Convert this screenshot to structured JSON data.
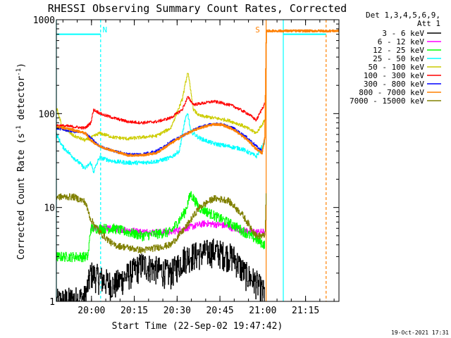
{
  "chart_data": {
    "type": "line",
    "title": "RHESSI Observing Summary Count Rates, Corrected",
    "xlabel": "Start Time (22-Sep-02 19:47:42)",
    "ylabel": "Corrected Count Rate (s⁻¹ detector⁻¹)",
    "ylabel_main": "Corrected Count Rate (s",
    "ylabel_sup1": "-1",
    "ylabel_mid": " detector",
    "ylabel_sup2": "-1",
    "ylabel_end": ")",
    "y_scale": "log",
    "ylim": [
      1,
      1000
    ],
    "xlim_minutes": [
      0,
      99
    ],
    "x_ticks": [
      {
        "label": "20:00",
        "minutes": 12.3
      },
      {
        "label": "20:15",
        "minutes": 27.3
      },
      {
        "label": "20:30",
        "minutes": 42.3
      },
      {
        "label": "20:45",
        "minutes": 57.3
      },
      {
        "label": "21:00",
        "minutes": 72.3
      },
      {
        "label": "21:15",
        "minutes": 87.3
      }
    ],
    "y_ticks": [
      {
        "label": "1",
        "value": 1
      },
      {
        "label": "10",
        "value": 10
      },
      {
        "label": "100",
        "value": 100
      },
      {
        "label": "1000",
        "value": 1000
      }
    ],
    "legend_header": [
      "Det 1,3,4,5,6,9,",
      "Att 1"
    ],
    "legend_position": "right",
    "series": [
      {
        "name": "3 - 6 keV",
        "color": "#000000",
        "noise": 0.35,
        "points": [
          [
            0,
            1.0
          ],
          [
            10,
            1.1
          ],
          [
            12,
            2.0
          ],
          [
            20,
            1.5
          ],
          [
            30,
            2.5
          ],
          [
            40,
            2.0
          ],
          [
            45,
            3.0
          ],
          [
            55,
            3.5
          ],
          [
            62,
            3.0
          ],
          [
            66,
            2.0
          ],
          [
            70,
            1.6
          ],
          [
            73,
            1.2
          ]
        ]
      },
      {
        "name": "6 - 12 keV",
        "color": "#ff00ff",
        "noise": 0.08,
        "points": [
          [
            12,
            6.0
          ],
          [
            20,
            6.0
          ],
          [
            30,
            5.5
          ],
          [
            40,
            5.5
          ],
          [
            45,
            6.0
          ],
          [
            52,
            6.8
          ],
          [
            58,
            6.5
          ],
          [
            64,
            5.8
          ],
          [
            70,
            5.5
          ],
          [
            73,
            5.5
          ]
        ]
      },
      {
        "name": "12 - 25 keV",
        "color": "#00ff00",
        "noise": 0.12,
        "points": [
          [
            0,
            3.0
          ],
          [
            11,
            3.0
          ],
          [
            12,
            6.0
          ],
          [
            20,
            6.0
          ],
          [
            30,
            5.0
          ],
          [
            40,
            5.5
          ],
          [
            45,
            9.0
          ],
          [
            47,
            14.0
          ],
          [
            50,
            10.0
          ],
          [
            56,
            8.0
          ],
          [
            62,
            6.5
          ],
          [
            68,
            5.0
          ],
          [
            73,
            4.0
          ]
        ]
      },
      {
        "name": "25 - 50 keV",
        "color": "#00ffff",
        "noise": 0.05,
        "points": [
          [
            0,
            60
          ],
          [
            2,
            45
          ],
          [
            6,
            34
          ],
          [
            10,
            26
          ],
          [
            12,
            30
          ],
          [
            13,
            24
          ],
          [
            15,
            34
          ],
          [
            20,
            31
          ],
          [
            25,
            30
          ],
          [
            30,
            30
          ],
          [
            35,
            31
          ],
          [
            40,
            34
          ],
          [
            43,
            40
          ],
          [
            45,
            85
          ],
          [
            46,
            100
          ],
          [
            47,
            65
          ],
          [
            50,
            55
          ],
          [
            55,
            48
          ],
          [
            60,
            45
          ],
          [
            65,
            42
          ],
          [
            70,
            35
          ],
          [
            73,
            50
          ]
        ]
      },
      {
        "name": "50 - 100 keV",
        "color": "#cccc00",
        "noise": 0.04,
        "points": [
          [
            0,
            115
          ],
          [
            2,
            72
          ],
          [
            6,
            58
          ],
          [
            10,
            52
          ],
          [
            12,
            55
          ],
          [
            15,
            62
          ],
          [
            20,
            56
          ],
          [
            25,
            54
          ],
          [
            30,
            56
          ],
          [
            35,
            58
          ],
          [
            40,
            70
          ],
          [
            44,
            140
          ],
          [
            46,
            280
          ],
          [
            48,
            110
          ],
          [
            50,
            95
          ],
          [
            55,
            90
          ],
          [
            60,
            85
          ],
          [
            65,
            75
          ],
          [
            70,
            62
          ],
          [
            73,
            85
          ]
        ]
      },
      {
        "name": "100 - 300 keV",
        "color": "#ff0000",
        "noise": 0.035,
        "points": [
          [
            0,
            75
          ],
          [
            5,
            73
          ],
          [
            10,
            70
          ],
          [
            12,
            80
          ],
          [
            13,
            110
          ],
          [
            16,
            98
          ],
          [
            20,
            90
          ],
          [
            25,
            82
          ],
          [
            30,
            80
          ],
          [
            35,
            82
          ],
          [
            40,
            90
          ],
          [
            44,
            110
          ],
          [
            46,
            150
          ],
          [
            48,
            125
          ],
          [
            52,
            130
          ],
          [
            55,
            135
          ],
          [
            58,
            130
          ],
          [
            62,
            120
          ],
          [
            67,
            100
          ],
          [
            70,
            85
          ],
          [
            73,
            130
          ]
        ]
      },
      {
        "name": "300 - 800 keV",
        "color": "#0000ff",
        "noise": 0.03,
        "points": [
          [
            0,
            70
          ],
          [
            5,
            65
          ],
          [
            10,
            62
          ],
          [
            12,
            55
          ],
          [
            15,
            45
          ],
          [
            20,
            40
          ],
          [
            25,
            37
          ],
          [
            30,
            37
          ],
          [
            35,
            40
          ],
          [
            40,
            50
          ],
          [
            45,
            60
          ],
          [
            50,
            72
          ],
          [
            55,
            78
          ],
          [
            58,
            77
          ],
          [
            62,
            70
          ],
          [
            67,
            55
          ],
          [
            70,
            45
          ],
          [
            72,
            40
          ],
          [
            73,
            55
          ]
        ]
      },
      {
        "name": "800 - 7000 keV",
        "color": "#ff8000",
        "noise": 0.025,
        "points": [
          [
            0,
            72
          ],
          [
            5,
            68
          ],
          [
            10,
            62
          ],
          [
            12,
            52
          ],
          [
            15,
            45
          ],
          [
            20,
            40
          ],
          [
            25,
            36
          ],
          [
            30,
            36
          ],
          [
            35,
            38
          ],
          [
            40,
            48
          ],
          [
            45,
            60
          ],
          [
            50,
            70
          ],
          [
            55,
            77
          ],
          [
            58,
            76
          ],
          [
            62,
            68
          ],
          [
            67,
            52
          ],
          [
            70,
            42
          ],
          [
            72,
            38
          ],
          [
            73,
            55
          ],
          [
            73.5,
            760
          ],
          [
            99,
            760
          ]
        ]
      },
      {
        "name": "7000 - 15000 keV",
        "color": "#808000",
        "noise": 0.08,
        "points": [
          [
            0,
            13
          ],
          [
            6,
            13
          ],
          [
            10,
            11.5
          ],
          [
            12,
            7.5
          ],
          [
            15,
            5.5
          ],
          [
            20,
            4.0
          ],
          [
            30,
            3.5
          ],
          [
            40,
            4.0
          ],
          [
            45,
            6.0
          ],
          [
            50,
            10.0
          ],
          [
            55,
            12.5
          ],
          [
            60,
            12.0
          ],
          [
            65,
            8.5
          ],
          [
            70,
            5.0
          ],
          [
            73,
            5.0
          ],
          [
            73.5,
            15
          ]
        ]
      }
    ],
    "attenuator_segments": [
      [
        0,
        15.5
      ],
      [
        79.5,
        94.5
      ]
    ],
    "attenuator_level": 700,
    "attenuator_color": "#00ffff",
    "vertical_markers": [
      {
        "minutes": 0,
        "color": "#00ffff",
        "style": "solid"
      },
      {
        "minutes": 15.5,
        "color": "#00ffff",
        "style": "dashed"
      },
      {
        "minutes": 73.5,
        "color": "#ff8000",
        "style": "solid"
      },
      {
        "minutes": 79.5,
        "color": "#00ffff",
        "style": "solid"
      },
      {
        "minutes": 94.5,
        "color": "#ff8000",
        "style": "dashed"
      }
    ],
    "flag_labels": [
      {
        "text": "N",
        "minutes": 17,
        "color": "#00ffff"
      },
      {
        "text": "S",
        "minutes": 70.5,
        "color": "#ff8000"
      }
    ],
    "timestamp": "19-Oct-2021 17:31"
  }
}
